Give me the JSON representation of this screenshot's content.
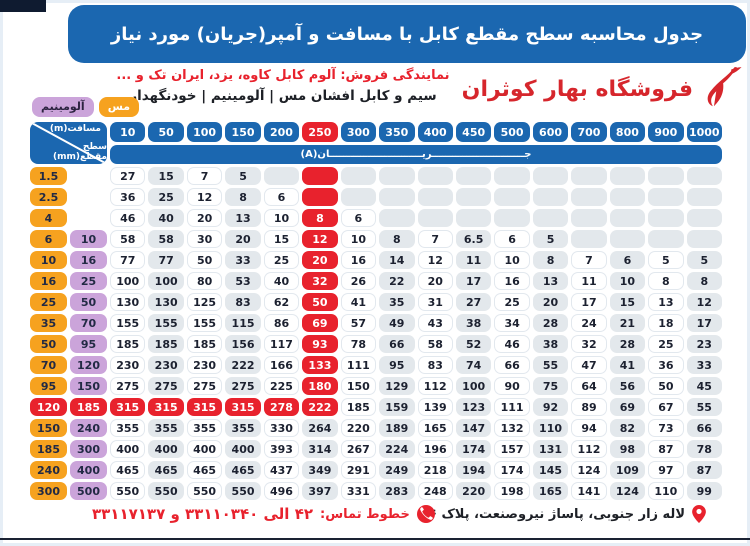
{
  "title": "جدول محاسبه سطح مقطع کابل با مسافت و آمپر(جریان) مورد نیاز",
  "store": {
    "name": "فروشگاه بهار کوثران",
    "dealers_line": "نمایندگی فروش: آلوم کابل کاوه، یزد، ایران تک و ...",
    "products_line": "سیم و کابل افشان مس | آلومینیم | خودنگهدار"
  },
  "legend": {
    "aluminum": "آلومینیم",
    "copper": "مس"
  },
  "table": {
    "corner_top": "مسافت(m)",
    "corner_bottom": "سطح مقطع(mm)",
    "current_band": "جـــــــــــــــــــــــــــریـــــــــــــــــــــــــــان(A)",
    "distances": [
      "10",
      "50",
      "100",
      "150",
      "200",
      "250",
      "300",
      "350",
      "400",
      "450",
      "500",
      "600",
      "700",
      "800",
      "900",
      "1000"
    ],
    "highlight_distance_index": 5,
    "highlight_row_index": 11,
    "rows": [
      {
        "mm": "1.5",
        "al": "",
        "values": [
          "27",
          "15",
          "7",
          "5",
          "",
          "",
          "",
          "",
          "",
          "",
          "",
          "",
          "",
          "",
          "",
          ""
        ]
      },
      {
        "mm": "2.5",
        "al": "",
        "values": [
          "36",
          "25",
          "12",
          "8",
          "6",
          "",
          "",
          "",
          "",
          "",
          "",
          "",
          "",
          "",
          "",
          ""
        ]
      },
      {
        "mm": "4",
        "al": "",
        "values": [
          "46",
          "40",
          "20",
          "13",
          "10",
          "8",
          "6",
          "",
          "",
          "",
          "",
          "",
          "",
          "",
          "",
          ""
        ]
      },
      {
        "mm": "6",
        "al": "10",
        "values": [
          "58",
          "58",
          "30",
          "20",
          "15",
          "12",
          "10",
          "8",
          "7",
          "6.5",
          "6",
          "5",
          "",
          "",
          "",
          ""
        ]
      },
      {
        "mm": "10",
        "al": "16",
        "values": [
          "77",
          "77",
          "50",
          "33",
          "25",
          "20",
          "16",
          "14",
          "12",
          "11",
          "10",
          "8",
          "7",
          "6",
          "5",
          "5"
        ]
      },
      {
        "mm": "16",
        "al": "25",
        "values": [
          "100",
          "100",
          "80",
          "53",
          "40",
          "32",
          "26",
          "22",
          "20",
          "17",
          "16",
          "13",
          "11",
          "10",
          "8",
          "8"
        ]
      },
      {
        "mm": "25",
        "al": "50",
        "values": [
          "130",
          "130",
          "125",
          "83",
          "62",
          "50",
          "41",
          "35",
          "31",
          "27",
          "25",
          "20",
          "17",
          "15",
          "13",
          "12"
        ]
      },
      {
        "mm": "35",
        "al": "70",
        "values": [
          "155",
          "155",
          "155",
          "115",
          "86",
          "69",
          "57",
          "49",
          "43",
          "38",
          "34",
          "28",
          "24",
          "21",
          "18",
          "17"
        ]
      },
      {
        "mm": "50",
        "al": "95",
        "values": [
          "185",
          "185",
          "185",
          "156",
          "117",
          "93",
          "78",
          "66",
          "58",
          "52",
          "46",
          "38",
          "32",
          "28",
          "25",
          "23"
        ]
      },
      {
        "mm": "70",
        "al": "120",
        "values": [
          "230",
          "230",
          "230",
          "222",
          "166",
          "133",
          "111",
          "95",
          "83",
          "74",
          "66",
          "55",
          "47",
          "41",
          "36",
          "33"
        ]
      },
      {
        "mm": "95",
        "al": "150",
        "values": [
          "275",
          "275",
          "275",
          "275",
          "225",
          "180",
          "150",
          "129",
          "112",
          "100",
          "90",
          "75",
          "64",
          "56",
          "50",
          "45"
        ]
      },
      {
        "mm": "120",
        "al": "185",
        "values": [
          "315",
          "315",
          "315",
          "315",
          "278",
          "222",
          "185",
          "159",
          "139",
          "123",
          "111",
          "92",
          "89",
          "69",
          "67",
          "55"
        ]
      },
      {
        "mm": "150",
        "al": "240",
        "values": [
          "355",
          "355",
          "355",
          "355",
          "330",
          "264",
          "220",
          "189",
          "165",
          "147",
          "132",
          "110",
          "94",
          "82",
          "73",
          "66"
        ]
      },
      {
        "mm": "185",
        "al": "300",
        "values": [
          "400",
          "400",
          "400",
          "400",
          "393",
          "314",
          "267",
          "224",
          "196",
          "174",
          "157",
          "131",
          "112",
          "98",
          "87",
          "78"
        ]
      },
      {
        "mm": "240",
        "al": "400",
        "values": [
          "465",
          "465",
          "465",
          "465",
          "437",
          "349",
          "291",
          "249",
          "218",
          "194",
          "174",
          "145",
          "124",
          "109",
          "97",
          "87"
        ]
      },
      {
        "mm": "300",
        "al": "500",
        "values": [
          "550",
          "550",
          "550",
          "550",
          "496",
          "397",
          "331",
          "283",
          "248",
          "220",
          "198",
          "165",
          "141",
          "124",
          "110",
          "99"
        ]
      }
    ]
  },
  "footer": {
    "address": "لاله زار جنوبی، پاساژ نیروصنعت، پلاک ۶",
    "phones_label": "خطوط تماس:",
    "phones": "۴۲ الی ۳۳۱۱۰۳۴۰ و ۳۳۱۱۷۱۳۷"
  },
  "colors": {
    "blue": "#1b67b0",
    "red": "#e8222d",
    "orange": "#f6a21f",
    "purple": "#cba4da",
    "gray": "#e3e8ec",
    "brand": "#d6262c"
  }
}
